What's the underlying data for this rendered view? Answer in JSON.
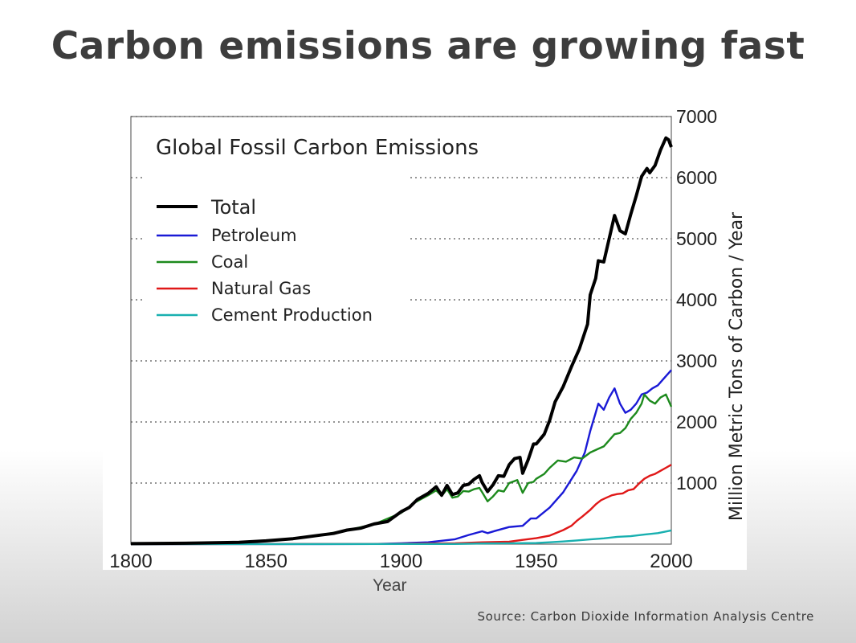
{
  "slide": {
    "title": "Carbon emissions are growing fast",
    "x_caption": "Year",
    "source": "Source: Carbon Dioxide Information Analysis Centre"
  },
  "chart_data": {
    "type": "line",
    "title": "Global Fossil Carbon Emissions",
    "xlabel": "",
    "ylabel": "Million Metric Tons of Carbon / Year",
    "xlim": [
      1800,
      2000
    ],
    "ylim": [
      0,
      7000
    ],
    "x_ticks": [
      "1800",
      "1850",
      "1900",
      "1950",
      "2000"
    ],
    "y_ticks": [
      "1000",
      "2000",
      "3000",
      "4000",
      "5000",
      "6000",
      "7000"
    ],
    "grid": "horizontal dotted",
    "legend_position": "top-left",
    "series": [
      {
        "name": "Total",
        "color": "#000000",
        "points": [
          [
            1800,
            8
          ],
          [
            1820,
            14
          ],
          [
            1840,
            30
          ],
          [
            1850,
            54
          ],
          [
            1860,
            90
          ],
          [
            1870,
            147
          ],
          [
            1875,
            175
          ],
          [
            1880,
            230
          ],
          [
            1885,
            260
          ],
          [
            1890,
            330
          ],
          [
            1895,
            370
          ],
          [
            1900,
            530
          ],
          [
            1903,
            600
          ],
          [
            1906,
            730
          ],
          [
            1910,
            830
          ],
          [
            1913,
            940
          ],
          [
            1915,
            800
          ],
          [
            1917,
            960
          ],
          [
            1919,
            810
          ],
          [
            1921,
            840
          ],
          [
            1923,
            960
          ],
          [
            1925,
            980
          ],
          [
            1927,
            1060
          ],
          [
            1929,
            1120
          ],
          [
            1930,
            1010
          ],
          [
            1932,
            860
          ],
          [
            1934,
            970
          ],
          [
            1936,
            1120
          ],
          [
            1938,
            1110
          ],
          [
            1940,
            1300
          ],
          [
            1942,
            1400
          ],
          [
            1944,
            1420
          ],
          [
            1945,
            1160
          ],
          [
            1947,
            1380
          ],
          [
            1949,
            1640
          ],
          [
            1950,
            1640
          ],
          [
            1953,
            1800
          ],
          [
            1955,
            2030
          ],
          [
            1957,
            2330
          ],
          [
            1960,
            2580
          ],
          [
            1963,
            2900
          ],
          [
            1966,
            3200
          ],
          [
            1969,
            3600
          ],
          [
            1970,
            4080
          ],
          [
            1972,
            4350
          ],
          [
            1973,
            4640
          ],
          [
            1975,
            4620
          ],
          [
            1977,
            5000
          ],
          [
            1979,
            5380
          ],
          [
            1981,
            5130
          ],
          [
            1983,
            5080
          ],
          [
            1985,
            5400
          ],
          [
            1987,
            5700
          ],
          [
            1989,
            6020
          ],
          [
            1991,
            6150
          ],
          [
            1992,
            6080
          ],
          [
            1994,
            6200
          ],
          [
            1996,
            6450
          ],
          [
            1998,
            6650
          ],
          [
            1999,
            6620
          ],
          [
            2000,
            6500
          ]
        ]
      },
      {
        "name": "Petroleum",
        "color": "#1a1ad6",
        "points": [
          [
            1800,
            0
          ],
          [
            1870,
            1
          ],
          [
            1890,
            3
          ],
          [
            1900,
            15
          ],
          [
            1910,
            30
          ],
          [
            1920,
            80
          ],
          [
            1925,
            150
          ],
          [
            1930,
            210
          ],
          [
            1932,
            180
          ],
          [
            1935,
            220
          ],
          [
            1940,
            280
          ],
          [
            1945,
            300
          ],
          [
            1948,
            420
          ],
          [
            1950,
            420
          ],
          [
            1955,
            600
          ],
          [
            1960,
            850
          ],
          [
            1965,
            1200
          ],
          [
            1968,
            1500
          ],
          [
            1970,
            1850
          ],
          [
            1972,
            2150
          ],
          [
            1973,
            2300
          ],
          [
            1975,
            2200
          ],
          [
            1977,
            2400
          ],
          [
            1979,
            2550
          ],
          [
            1981,
            2300
          ],
          [
            1983,
            2150
          ],
          [
            1985,
            2200
          ],
          [
            1987,
            2300
          ],
          [
            1989,
            2450
          ],
          [
            1991,
            2480
          ],
          [
            1993,
            2550
          ],
          [
            1995,
            2600
          ],
          [
            1997,
            2700
          ],
          [
            2000,
            2850
          ]
        ]
      },
      {
        "name": "Coal",
        "color": "#1d8a1d",
        "points": [
          [
            1800,
            8
          ],
          [
            1820,
            14
          ],
          [
            1840,
            30
          ],
          [
            1850,
            54
          ],
          [
            1860,
            90
          ],
          [
            1870,
            146
          ],
          [
            1880,
            228
          ],
          [
            1890,
            325
          ],
          [
            1900,
            510
          ],
          [
            1905,
            680
          ],
          [
            1910,
            800
          ],
          [
            1913,
            880
          ],
          [
            1915,
            790
          ],
          [
            1917,
            900
          ],
          [
            1919,
            760
          ],
          [
            1921,
            780
          ],
          [
            1923,
            870
          ],
          [
            1925,
            860
          ],
          [
            1927,
            900
          ],
          [
            1929,
            920
          ],
          [
            1930,
            850
          ],
          [
            1932,
            700
          ],
          [
            1934,
            780
          ],
          [
            1936,
            880
          ],
          [
            1938,
            860
          ],
          [
            1940,
            1000
          ],
          [
            1943,
            1050
          ],
          [
            1945,
            840
          ],
          [
            1947,
            1000
          ],
          [
            1949,
            1020
          ],
          [
            1950,
            1070
          ],
          [
            1953,
            1150
          ],
          [
            1955,
            1250
          ],
          [
            1958,
            1370
          ],
          [
            1961,
            1350
          ],
          [
            1964,
            1420
          ],
          [
            1967,
            1400
          ],
          [
            1970,
            1500
          ],
          [
            1973,
            1560
          ],
          [
            1975,
            1600
          ],
          [
            1977,
            1700
          ],
          [
            1979,
            1800
          ],
          [
            1981,
            1820
          ],
          [
            1983,
            1900
          ],
          [
            1985,
            2050
          ],
          [
            1987,
            2150
          ],
          [
            1989,
            2300
          ],
          [
            1990,
            2450
          ],
          [
            1992,
            2350
          ],
          [
            1994,
            2300
          ],
          [
            1996,
            2400
          ],
          [
            1998,
            2450
          ],
          [
            2000,
            2250
          ]
        ]
      },
      {
        "name": "Natural Gas",
        "color": "#e01818",
        "points": [
          [
            1800,
            0
          ],
          [
            1890,
            2
          ],
          [
            1900,
            5
          ],
          [
            1910,
            10
          ],
          [
            1920,
            15
          ],
          [
            1930,
            30
          ],
          [
            1940,
            40
          ],
          [
            1945,
            70
          ],
          [
            1950,
            97
          ],
          [
            1955,
            140
          ],
          [
            1960,
            230
          ],
          [
            1963,
            300
          ],
          [
            1965,
            380
          ],
          [
            1967,
            450
          ],
          [
            1970,
            560
          ],
          [
            1972,
            650
          ],
          [
            1974,
            720
          ],
          [
            1976,
            760
          ],
          [
            1978,
            800
          ],
          [
            1980,
            820
          ],
          [
            1982,
            830
          ],
          [
            1984,
            880
          ],
          [
            1986,
            900
          ],
          [
            1988,
            990
          ],
          [
            1990,
            1070
          ],
          [
            1992,
            1120
          ],
          [
            1994,
            1150
          ],
          [
            1996,
            1200
          ],
          [
            1998,
            1250
          ],
          [
            2000,
            1300
          ]
        ]
      },
      {
        "name": "Cement Production",
        "color": "#19b0b0",
        "points": [
          [
            1800,
            0
          ],
          [
            1920,
            3
          ],
          [
            1930,
            10
          ],
          [
            1940,
            15
          ],
          [
            1950,
            18
          ],
          [
            1955,
            30
          ],
          [
            1960,
            43
          ],
          [
            1965,
            60
          ],
          [
            1970,
            78
          ],
          [
            1975,
            95
          ],
          [
            1980,
            120
          ],
          [
            1985,
            130
          ],
          [
            1990,
            157
          ],
          [
            1995,
            180
          ],
          [
            2000,
            225
          ]
        ]
      }
    ]
  }
}
